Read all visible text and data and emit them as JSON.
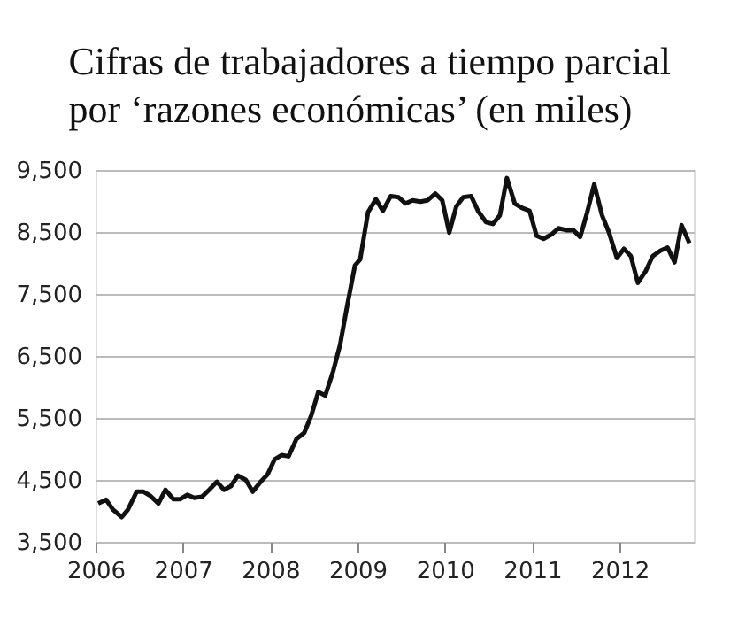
{
  "chart_data": {
    "type": "line",
    "title": "Cifras de trabajadores a tiempo parcial\npor ‘razones económicas’ (en miles)",
    "x": [
      2006.03,
      2006.12,
      2006.2,
      2006.3,
      2006.37,
      2006.47,
      2006.55,
      2006.63,
      2006.72,
      2006.8,
      2006.89,
      2006.97,
      2007.05,
      2007.13,
      2007.22,
      2007.3,
      2007.39,
      2007.47,
      2007.55,
      2007.63,
      2007.72,
      2007.8,
      2007.89,
      2007.97,
      2008.05,
      2008.13,
      2008.21,
      2008.3,
      2008.39,
      2008.47,
      2008.55,
      2008.63,
      2008.72,
      2008.8,
      2008.88,
      2008.97,
      2009.03,
      2009.12,
      2009.21,
      2009.29,
      2009.38,
      2009.47,
      2009.55,
      2009.63,
      2009.72,
      2009.8,
      2009.89,
      2009.97,
      2010.05,
      2010.13,
      2010.21,
      2010.3,
      2010.38,
      2010.47,
      2010.55,
      2010.63,
      2010.71,
      2010.8,
      2010.88,
      2010.97,
      2011.05,
      2011.13,
      2011.22,
      2011.3,
      2011.39,
      2011.47,
      2011.55,
      2011.63,
      2011.71,
      2011.8,
      2011.88,
      2011.97,
      2012.05,
      2012.13,
      2012.21,
      2012.3,
      2012.38,
      2012.47,
      2012.55,
      2012.63,
      2012.71,
      2012.8
    ],
    "series": [
      {
        "color": "#111111",
        "values": [
          4120,
          4180,
          4020,
          3900,
          4020,
          4310,
          4310,
          4240,
          4120,
          4340,
          4190,
          4190,
          4260,
          4210,
          4230,
          4340,
          4470,
          4340,
          4400,
          4570,
          4500,
          4310,
          4470,
          4590,
          4830,
          4900,
          4880,
          5160,
          5260,
          5540,
          5920,
          5860,
          6250,
          6680,
          7300,
          7960,
          8060,
          8820,
          9030,
          8840,
          9080,
          9060,
          8960,
          9010,
          8990,
          9010,
          9120,
          9010,
          8490,
          8910,
          9060,
          9080,
          8840,
          8660,
          8630,
          8770,
          9370,
          8960,
          8890,
          8840,
          8440,
          8390,
          8460,
          8560,
          8530,
          8530,
          8420,
          8820,
          9270,
          8770,
          8490,
          8080,
          8230,
          8110,
          7680,
          7870,
          8110,
          8200,
          8250,
          8010,
          8610,
          8320
        ]
      }
    ],
    "xlim": [
      2006,
      2012.85
    ],
    "xticks": [
      2006,
      2007,
      2008,
      2009,
      2010,
      2011,
      2012
    ],
    "ylim": [
      3500,
      9500
    ],
    "yticks": [
      {
        "value": 3500,
        "label": "3,500"
      },
      {
        "value": 4500,
        "label": "4,500"
      },
      {
        "value": 5500,
        "label": "5,500"
      },
      {
        "value": 6500,
        "label": "6,500"
      },
      {
        "value": 7500,
        "label": "7,500"
      },
      {
        "value": 8500,
        "label": "8,500"
      },
      {
        "value": 9500,
        "label": "9,500"
      }
    ],
    "grid": "y",
    "marker": "none",
    "line_style": "solid"
  }
}
